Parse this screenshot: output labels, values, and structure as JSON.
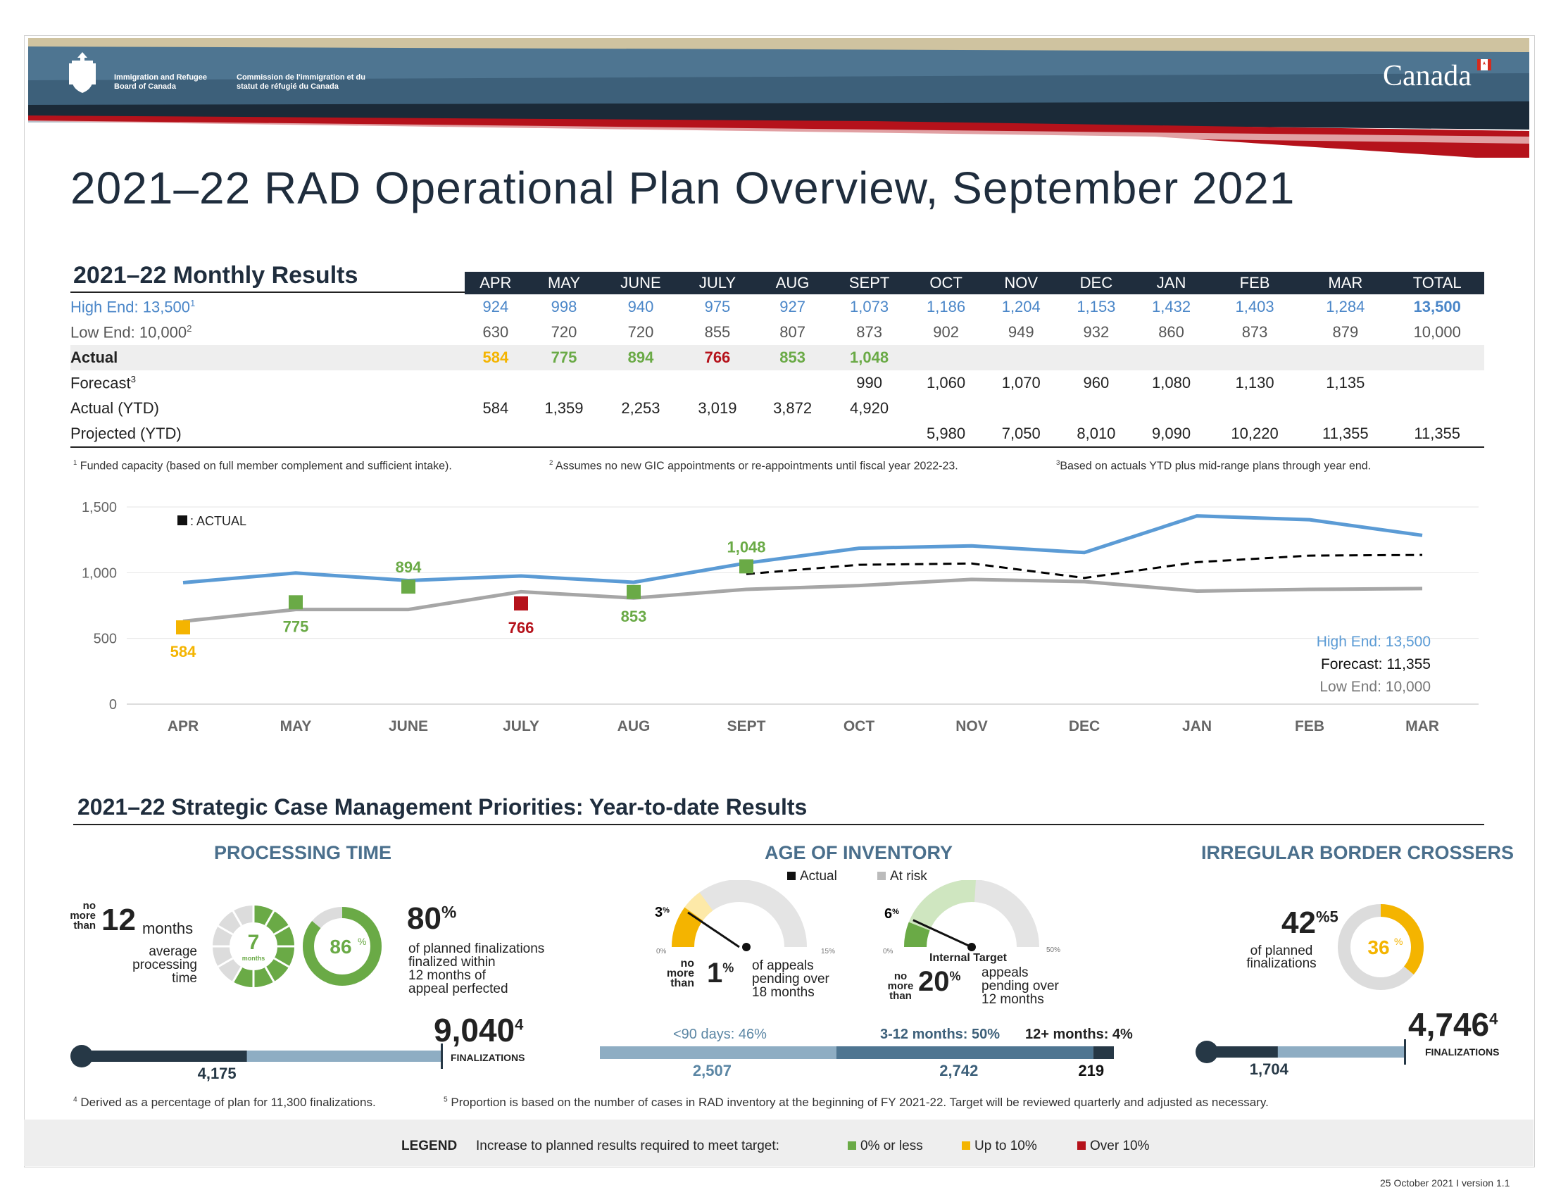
{
  "header": {
    "org_en": "Immigration and Refugee Board of Canada",
    "org_fr": "Commission de l'immigration et du statut de réfugié du Canada",
    "wordmark": "Canada"
  },
  "page_title": "2021–22 RAD Operational Plan Overview, September 2021",
  "monthly": {
    "title": "2021–22 Monthly Results",
    "columns": [
      "APR",
      "MAY",
      "JUNE",
      "JULY",
      "AUG",
      "SEPT",
      "OCT",
      "NOV",
      "DEC",
      "JAN",
      "FEB",
      "MAR",
      "TOTAL"
    ],
    "rows": [
      {
        "label": "High End: 13,500",
        "sup": "1",
        "cls": "high",
        "cells": [
          "924",
          "998",
          "940",
          "975",
          "927",
          "1,073",
          "1,186",
          "1,204",
          "1,153",
          "1,432",
          "1,403",
          "1,284",
          "13,500"
        ]
      },
      {
        "label": "Low End: 10,000",
        "sup": "2",
        "cls": "low",
        "cells": [
          "630",
          "720",
          "720",
          "855",
          "807",
          "873",
          "902",
          "949",
          "932",
          "860",
          "873",
          "879",
          "10,000"
        ]
      },
      {
        "label": "Actual",
        "sup": "",
        "cls": "actual",
        "cells": [
          "584",
          "775",
          "894",
          "766",
          "853",
          "1,048",
          "",
          "",
          "",
          "",
          "",
          "",
          ""
        ]
      },
      {
        "label": "Forecast",
        "sup": "3",
        "cls": "",
        "cells": [
          "",
          "",
          "",
          "",
          "",
          "990",
          "1,060",
          "1,070",
          "960",
          "1,080",
          "1,130",
          "1,135",
          ""
        ]
      },
      {
        "label": "Actual (YTD)",
        "sup": "",
        "cls": "",
        "cells": [
          "584",
          "1,359",
          "2,253",
          "3,019",
          "3,872",
          "4,920",
          "",
          "",
          "",
          "",
          "",
          "",
          ""
        ]
      },
      {
        "label": "Projected (YTD)",
        "sup": "",
        "cls": "last",
        "cells": [
          "",
          "",
          "",
          "",
          "",
          "",
          "5,980",
          "7,050",
          "8,010",
          "9,090",
          "10,220",
          "11,355",
          "11,355"
        ]
      }
    ],
    "actual_colors": [
      "#f4b400",
      "#6aaa46",
      "#6aaa46",
      "#b5121b",
      "#6aaa46",
      "#6aaa46"
    ],
    "footnotes": [
      "Funded capacity (based on full member complement and sufficient intake).",
      "Assumes no new GIC appointments or re-appointments until fiscal year 2022-23.",
      "Based on actuals YTD plus mid-range plans through year end."
    ]
  },
  "chart_data": {
    "type": "line",
    "categories": [
      "APR",
      "MAY",
      "JUNE",
      "JULY",
      "AUG",
      "SEPT",
      "OCT",
      "NOV",
      "DEC",
      "JAN",
      "FEB",
      "MAR"
    ],
    "ylim": [
      0,
      1500
    ],
    "yticks": [
      "0",
      "500",
      "1,000",
      "1,500"
    ],
    "series": [
      {
        "name": "High End: 13,500",
        "values": [
          924,
          998,
          940,
          975,
          927,
          1073,
          1186,
          1204,
          1153,
          1432,
          1403,
          1284
        ],
        "color": "#5b9bd5",
        "style": "solid"
      },
      {
        "name": "Low End: 10,000",
        "values": [
          630,
          720,
          720,
          855,
          807,
          873,
          902,
          949,
          932,
          860,
          873,
          879
        ],
        "color": "#a6a6a6",
        "style": "solid"
      },
      {
        "name": "Forecast: 11,355",
        "values": [
          null,
          null,
          null,
          null,
          null,
          990,
          1060,
          1070,
          960,
          1080,
          1130,
          1135
        ],
        "color": "#000000",
        "style": "dashed"
      }
    ],
    "actual_points": [
      {
        "month": "APR",
        "value": 584,
        "label": "584",
        "color": "#f4b400"
      },
      {
        "month": "MAY",
        "value": 775,
        "label": "775",
        "color": "#6aaa46"
      },
      {
        "month": "JUNE",
        "value": 894,
        "label": "894",
        "color": "#6aaa46"
      },
      {
        "month": "JULY",
        "value": 766,
        "label": "766",
        "color": "#b5121b"
      },
      {
        "month": "AUG",
        "value": 853,
        "label": "853",
        "color": "#6aaa46"
      },
      {
        "month": "SEPT",
        "value": 1048,
        "label": "1,048",
        "color": "#6aaa46"
      }
    ],
    "legend_marker_label": ": ACTUAL",
    "end_labels": {
      "high": "High End: 13,500",
      "forecast": "Forecast: 11,355",
      "low": "Low End: 10,000"
    }
  },
  "priorities": {
    "title": "2021–22 Strategic Case Management Priorities: Year-to-date Results",
    "processing": {
      "heading": "PROCESSING TIME",
      "no_more_than": [
        "no",
        "more",
        "than"
      ],
      "target_num": "12",
      "target_unit": "months",
      "avg_text": [
        "average",
        "processing",
        "time"
      ],
      "donut1_value": "7",
      "donut1_unit": "months",
      "donut2_value": "86",
      "donut2_pct": 86,
      "pct_target": "80",
      "pct_text": [
        "of planned finalizations",
        "finalized within",
        "12 months of",
        "appeal perfected"
      ],
      "finalizations_value": "9,040",
      "finalizations_sup": "4",
      "finalizations_label": "FINALIZATIONS",
      "bar_value": "4,175",
      "bar_fraction": 0.46
    },
    "inventory": {
      "heading": "AGE OF INVENTORY",
      "legend_actual": "Actual",
      "legend_risk": "At risk",
      "g1_value": "3",
      "g1_min": "0%",
      "g1_max": "15%",
      "g1_target": "1",
      "g1_text": [
        "of appeals",
        "pending over",
        "18 months"
      ],
      "g2_value": "6",
      "g2_min": "0%",
      "g2_max": "50%",
      "g2_internal": "Internal Target",
      "g2_target": "20",
      "g2_text": [
        "appeals",
        "pending over",
        "12 months"
      ],
      "no_more_than": [
        "no",
        "more",
        "than"
      ],
      "seg_labels": [
        "<90 days: 46%",
        "3-12 months: 50%",
        "12+ months: 4%"
      ],
      "seg_values": [
        "2,507",
        "2,742",
        "219"
      ],
      "seg_fractions": [
        0.46,
        0.5,
        0.04
      ]
    },
    "ibc": {
      "heading": "IRREGULAR BORDER CROSSERS",
      "target": "42",
      "target_sup": "5",
      "target_text": [
        "of planned",
        "finalizations"
      ],
      "donut_value": "36",
      "donut_pct": 36,
      "finalizations_value": "4,746",
      "finalizations_sup": "4",
      "finalizations_label": "FINALIZATIONS",
      "bar_value": "1,704",
      "bar_fraction": 0.36
    },
    "footnotes": [
      "Derived as a percentage of plan for 11,300 finalizations.",
      "Proportion is based on the number of cases in RAD inventory at the beginning of FY 2021-22. Target will be reviewed quarterly and adjusted as necessary."
    ]
  },
  "legend": {
    "title": "LEGEND",
    "text": "Increase to planned results required to meet target:",
    "items": [
      {
        "label": "0% or less",
        "color": "#6aaa46"
      },
      {
        "label": "Up to 10%",
        "color": "#f4b400"
      },
      {
        "label": "Over 10%",
        "color": "#b5121b"
      }
    ]
  },
  "footer": "25 October 2021 I version 1.1"
}
